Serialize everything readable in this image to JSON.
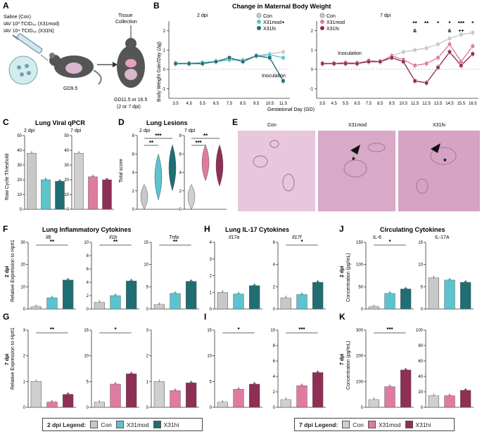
{
  "colors": {
    "con": "#c8c8c8",
    "mod": "#5bc4cc",
    "hi": "#1f6e73",
    "con7": "#cfcfcf",
    "mod7": "#e07aa0",
    "hi7": "#8e2f56",
    "tissue": "#c78fb7",
    "mouse": "#555555"
  },
  "panelA": {
    "letter": "A",
    "lines": [
      "Saline (Con)",
      "IAV 10³ TCID₅₀ (X31mod)",
      "IAV 10⁴ TCID₅₀ (X31hi)"
    ],
    "gd": "GD9.5",
    "tissue": "Tissue",
    "collection": "Collection",
    "collect_gd": "GD11.5 or 16.5",
    "collect_dpi": "(2 or 7 dpi)"
  },
  "panelB": {
    "letter": "B",
    "title": "Change in Maternal Body Weight",
    "ylabel": "Body Weight Gain/Day (Δg)",
    "xlabel": "Gestational Day (GD)",
    "sub2": "2 dpi",
    "sub7": "7 dpi",
    "inoculation": "Inoculation",
    "legend2": [
      "Con",
      "X31mod",
      "X31hi"
    ],
    "legend7": [
      "Con",
      "X31mod",
      "X31hi"
    ]
  },
  "panelC": {
    "letter": "C",
    "title": "Lung Viral qPCR",
    "ylabel": "Raw Cycle Threshold",
    "sub2": "2 dpi",
    "sub7": "7 dpi"
  },
  "panelD": {
    "letter": "D",
    "title": "Lung Lesions",
    "ylabel": "Total score",
    "sub2": "2 dpi",
    "sub7": "7 dpi",
    "stars2": [
      "***",
      "**"
    ],
    "stars7": [
      "**",
      "***"
    ]
  },
  "panelE": {
    "letter": "E",
    "labels": [
      "Con",
      "X31mod",
      "X31hi"
    ]
  },
  "panelF": {
    "letter": "F",
    "title": "Lung Inflammatory Cytokines",
    "genes": [
      "Il6",
      "Il1b",
      "Tnfa"
    ],
    "row": "2 dpi",
    "ylabel": "Relative Expression to Hprt1"
  },
  "panelG": {
    "letter": "G",
    "row": "7 dpi",
    "ylabel": "Relative Expression to Hprt1"
  },
  "panelH": {
    "letter": "H",
    "title": "Lung IL-17 Cytokines",
    "genes": [
      "Il17a",
      "Il17f"
    ]
  },
  "panelI": {
    "letter": "I"
  },
  "panelJ": {
    "letter": "J",
    "title": "Circulating Cytokines",
    "genes": [
      "IL-6",
      "IL-17A"
    ],
    "row": "2 dpi",
    "ylabel": "Concentration (pg/mL)"
  },
  "panelK": {
    "letter": "K",
    "row": "7 dpi",
    "ylabel": "Concentration (pg/mL)"
  },
  "legend2dpi": {
    "title": "2 dpi Legend:",
    "items": [
      "Con",
      "X31mod",
      "X31hi"
    ]
  },
  "legend7dpi": {
    "title": "7 dpi Legend:",
    "items": [
      "Con",
      "X31mod",
      "X31hi"
    ]
  },
  "chart_data": [
    {
      "id": "B-2dpi",
      "type": "line",
      "x": [
        3.5,
        4.5,
        5.5,
        6.5,
        7.5,
        8.5,
        9.5,
        10.5,
        11.5
      ],
      "series": [
        {
          "name": "Con",
          "values": [
            0.3,
            0.3,
            0.3,
            0.4,
            0.5,
            0.5,
            0.7,
            0.8,
            0.9
          ]
        },
        {
          "name": "X31mod",
          "values": [
            0.3,
            0.3,
            0.35,
            0.4,
            0.5,
            0.45,
            0.7,
            0.75,
            0.6
          ]
        },
        {
          "name": "X31hi",
          "values": [
            0.3,
            0.3,
            0.3,
            0.4,
            0.6,
            0.4,
            0.7,
            0.6,
            -0.6
          ]
        }
      ],
      "ylim": [
        -1.5,
        2.5
      ],
      "yticks": [
        -1,
        0,
        1,
        2
      ],
      "stars": {
        "11.5": "*"
      }
    },
    {
      "id": "B-7dpi",
      "type": "line",
      "x": [
        3.5,
        4.5,
        5.5,
        6.5,
        7.5,
        8.5,
        9.5,
        10.5,
        11.5,
        12.5,
        13.5,
        14.5,
        15.5,
        16.5
      ],
      "series": [
        {
          "name": "Con",
          "values": [
            0.3,
            0.3,
            0.3,
            0.35,
            0.4,
            0.4,
            0.7,
            0.9,
            1.0,
            1.1,
            1.3,
            1.6,
            1.8,
            1.9
          ]
        },
        {
          "name": "X31mod",
          "values": [
            0.3,
            0.3,
            0.35,
            0.3,
            0.45,
            0.4,
            0.7,
            0.5,
            0.2,
            0.3,
            0.6,
            1.3,
            0.4,
            1.2
          ]
        },
        {
          "name": "X31hi",
          "values": [
            0.3,
            0.3,
            0.3,
            0.3,
            0.4,
            0.4,
            0.6,
            0.4,
            -0.6,
            -0.7,
            0.1,
            0.9,
            0.2,
            0.8
          ]
        }
      ],
      "ylim": [
        -1.5,
        2.5
      ],
      "yticks": [
        -1,
        0,
        1,
        2
      ],
      "stars": {
        "11.5": "**",
        "12.5": "**",
        "13.5": "*",
        "14.5": "*",
        "15.5": "***",
        "16.5": "*"
      },
      "other": {
        "11.5": "&",
        "14.5": "&",
        "15.5": "++"
      }
    },
    {
      "id": "C-2dpi",
      "type": "bar",
      "categories": [
        "Con",
        "X31mod",
        "X31hi"
      ],
      "values": [
        38,
        20,
        19
      ],
      "ylim": [
        0,
        50
      ],
      "yticks": [
        0,
        10,
        20,
        30,
        40,
        50
      ]
    },
    {
      "id": "C-7dpi",
      "type": "bar",
      "categories": [
        "Con",
        "X31mod",
        "X31hi"
      ],
      "values": [
        38,
        22,
        20
      ],
      "ylim": [
        0,
        50
      ],
      "yticks": [
        0,
        10,
        20,
        30,
        40,
        50
      ]
    },
    {
      "id": "D-2dpi",
      "type": "violin",
      "categories": [
        "Con",
        "X31mod",
        "X31hi"
      ],
      "values": [
        0.2,
        3.5,
        4.5
      ],
      "ylim": [
        0,
        8
      ],
      "yticks": [
        0,
        2,
        4,
        6,
        8
      ]
    },
    {
      "id": "D-7dpi",
      "type": "violin",
      "categories": [
        "Con",
        "X31mod",
        "X31hi"
      ],
      "values": [
        0.2,
        5.6,
        5.0
      ],
      "ylim": [
        0,
        8
      ],
      "yticks": [
        0,
        2,
        4,
        6,
        8
      ]
    },
    {
      "id": "F-Il6",
      "type": "bar",
      "categories": [
        "Con",
        "X31mod",
        "X31hi"
      ],
      "values": [
        1,
        5,
        13
      ],
      "ylim": [
        0,
        30
      ],
      "yticks": [
        0,
        10,
        20,
        30
      ],
      "sig": "**"
    },
    {
      "id": "F-Il1b",
      "type": "bar",
      "categories": [
        "Con",
        "X31mod",
        "X31hi"
      ],
      "values": [
        1,
        2,
        4.2
      ],
      "ylim": [
        0,
        10
      ],
      "yticks": [
        0,
        2,
        4,
        6,
        8,
        10
      ],
      "sig": "**"
    },
    {
      "id": "F-Tnfa",
      "type": "bar",
      "categories": [
        "Con",
        "X31mod",
        "X31hi"
      ],
      "values": [
        1,
        3.5,
        6.2
      ],
      "ylim": [
        0,
        15
      ],
      "yticks": [
        0,
        5,
        10,
        15
      ],
      "sig": "**"
    },
    {
      "id": "H-Il17a",
      "type": "bar",
      "categories": [
        "Con",
        "X31mod",
        "X31hi"
      ],
      "values": [
        1,
        0.9,
        1.4
      ],
      "ylim": [
        0,
        4
      ],
      "yticks": [
        0,
        1,
        2,
        3,
        4
      ]
    },
    {
      "id": "H-Il17f",
      "type": "bar",
      "categories": [
        "Con",
        "X31mod",
        "X31hi"
      ],
      "values": [
        1,
        1.3,
        2.4
      ],
      "ylim": [
        0,
        6
      ],
      "yticks": [
        0,
        2,
        4,
        6
      ],
      "sig": "*"
    },
    {
      "id": "J-IL6",
      "type": "bar",
      "categories": [
        "Con",
        "X31mod",
        "X31hi"
      ],
      "values": [
        5,
        35,
        45
      ],
      "ylim": [
        0,
        150
      ],
      "yticks": [
        0,
        50,
        100,
        150
      ],
      "sig": "*"
    },
    {
      "id": "J-IL17A",
      "type": "bar",
      "categories": [
        "Con",
        "X31mod",
        "X31hi"
      ],
      "values": [
        7,
        6.5,
        6
      ],
      "ylim": [
        0,
        15
      ],
      "yticks": [
        0,
        5,
        10,
        15
      ]
    },
    {
      "id": "G-Il6",
      "type": "bar",
      "categories": [
        "Con",
        "X31mod",
        "X31hi"
      ],
      "values": [
        1,
        0.2,
        0.5
      ],
      "ylim": [
        0,
        3
      ],
      "yticks": [
        0,
        1,
        2,
        3
      ],
      "sig": "**"
    },
    {
      "id": "G-Il1b",
      "type": "bar",
      "categories": [
        "Con",
        "X31mod",
        "X31hi"
      ],
      "values": [
        1,
        4.5,
        6.5
      ],
      "ylim": [
        0,
        15
      ],
      "yticks": [
        0,
        5,
        10,
        15
      ],
      "sig": "*"
    },
    {
      "id": "G-Tnfa",
      "type": "bar",
      "categories": [
        "Con",
        "X31mod",
        "X31hi"
      ],
      "values": [
        1,
        0.65,
        0.95
      ],
      "ylim": [
        0,
        3
      ],
      "yticks": [
        0,
        1,
        2,
        3
      ]
    },
    {
      "id": "I-Il17a",
      "type": "bar",
      "categories": [
        "Con",
        "X31mod",
        "X31hi"
      ],
      "values": [
        1,
        3.5,
        4.5
      ],
      "ylim": [
        0,
        15
      ],
      "yticks": [
        0,
        5,
        10,
        15
      ],
      "sig": "*"
    },
    {
      "id": "I-Il17f",
      "type": "bar",
      "categories": [
        "Con",
        "X31mod",
        "X31hi"
      ],
      "values": [
        1,
        2.8,
        4.5
      ],
      "ylim": [
        0,
        10
      ],
      "yticks": [
        0,
        2,
        4,
        6,
        8,
        10
      ],
      "sig": "***"
    },
    {
      "id": "K-IL6",
      "type": "bar",
      "categories": [
        "Con",
        "X31mod",
        "X31hi"
      ],
      "values": [
        30,
        80,
        145
      ],
      "ylim": [
        0,
        300
      ],
      "yticks": [
        0,
        100,
        200,
        300
      ],
      "sig": "***"
    },
    {
      "id": "K-IL17A",
      "type": "bar",
      "categories": [
        "Con",
        "X31mod",
        "X31hi"
      ],
      "values": [
        15,
        15,
        22
      ],
      "ylim": [
        0,
        100
      ],
      "yticks": [
        0,
        20,
        40,
        60,
        80,
        100
      ]
    }
  ]
}
